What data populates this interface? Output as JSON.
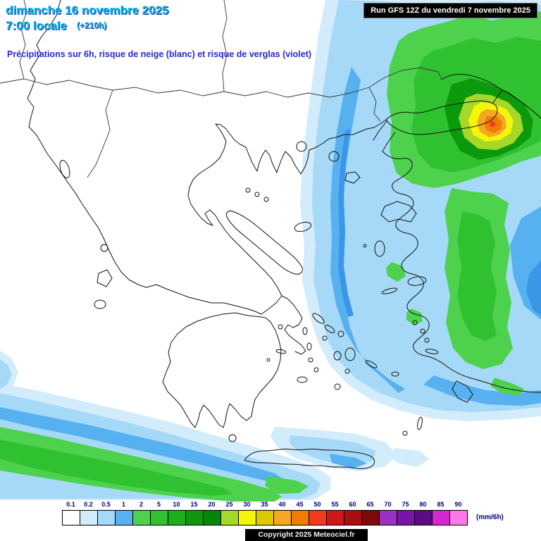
{
  "header": {
    "date_line": "dimanche 16 novembre 2025",
    "time_line": "7:00 locale",
    "offset": "(+210h)",
    "subtitle": "Précipitations sur 6h, risque de neige (blanc) et risque de verglas (violet)",
    "run_info": "Run GFS 12Z du vendredi 7 novembre 2025"
  },
  "legend": {
    "values": [
      "0.1",
      "0.2",
      "0.5",
      "1",
      "2",
      "5",
      "10",
      "15",
      "20",
      "25",
      "30",
      "35",
      "40",
      "45",
      "50",
      "55",
      "60",
      "65",
      "70",
      "75",
      "80",
      "85",
      "90"
    ],
    "colors": [
      "#ffffff",
      "#d2ecfb",
      "#a5d9f7",
      "#57b0f0",
      "#4ed24e",
      "#2fc12f",
      "#1dae1d",
      "#0c9a0c",
      "#078507",
      "#a6d82a",
      "#f5f50a",
      "#dcc800",
      "#f5a623",
      "#f07d00",
      "#f03c1e",
      "#d01818",
      "#a81010",
      "#7c0a0a",
      "#9b30c8",
      "#7a14a8",
      "#5c0a88",
      "#d428d4",
      "#ff78e8"
    ],
    "unit": "(mm/6h)"
  },
  "footer": {
    "copyright": "Copyright 2025 Meteociel.fr"
  },
  "colors": {
    "title_cyan": "#00b6f2",
    "subtitle_blue": "#2828d8",
    "label_navy": "#000080"
  }
}
